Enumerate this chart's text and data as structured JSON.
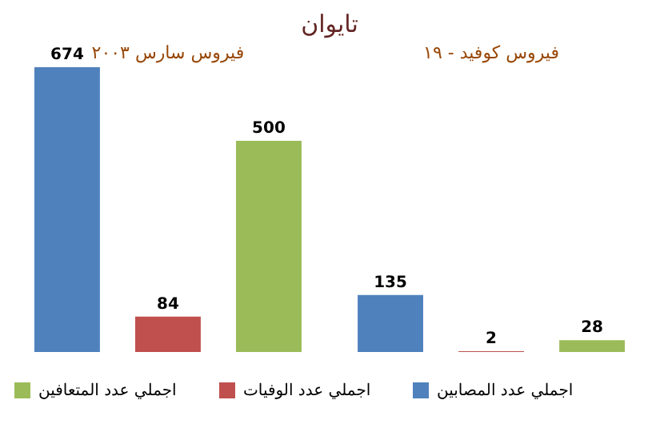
{
  "chart_data": {
    "type": "bar",
    "title": "تايوان",
    "categories": [
      "فيروس سارس ٢٠٠٣",
      "فيروس كوفيد - ١٩"
    ],
    "series": [
      {
        "name": "اجملي عدد المصابين",
        "color": "#4f81bd",
        "values": [
          674,
          135
        ]
      },
      {
        "name": "اجملي عدد الوفيات",
        "color": "#c0504d",
        "values": [
          84,
          2
        ]
      },
      {
        "name": "اجملي عدد المتعافين",
        "color": "#9bbb59",
        "values": [
          500,
          28
        ]
      }
    ],
    "data_labels": true,
    "legend": "bottom"
  }
}
